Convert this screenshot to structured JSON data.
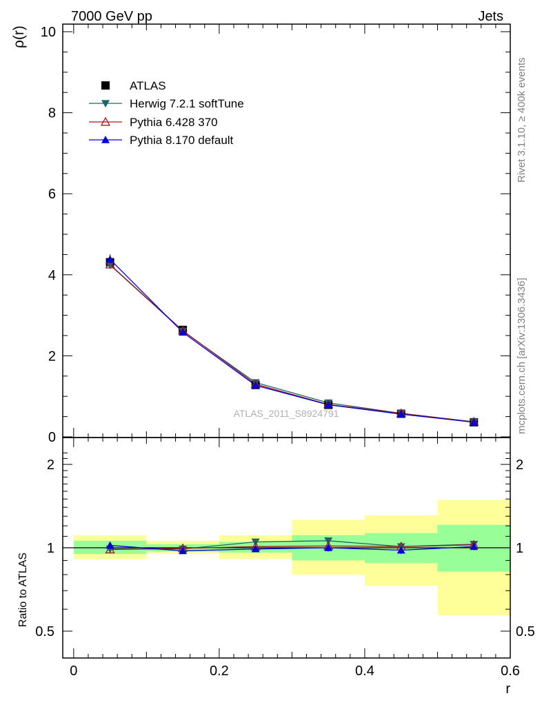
{
  "header": {
    "left": "7000 GeV pp",
    "right": "Jets"
  },
  "side_labels": {
    "rivet": "Rivet 3.1.10, ≥ 400k events",
    "mcplots": "mcplots.cern.ch [arXiv:1306.3436]"
  },
  "watermark": "ATLAS_2011_S8924791",
  "colors": {
    "atlas": "#000000",
    "herwig": "#1c6666",
    "pythia6": "#a3161a",
    "pythia8": "#0000dd",
    "band_inner": "#98ff98",
    "band_outer": "#ffff99"
  },
  "chart_data": [
    {
      "type": "line",
      "ylabel": "ρ(r)",
      "xlim": [
        -0.015,
        0.6
      ],
      "ylim": [
        0,
        10.2
      ],
      "yticks": [
        0,
        2,
        4,
        6,
        8,
        10
      ],
      "ytick_labels": [
        "0",
        "2",
        "4",
        "6",
        "8",
        "10"
      ],
      "x": [
        0.05,
        0.15,
        0.25,
        0.35,
        0.45,
        0.55
      ],
      "legend": [
        {
          "name": "ATLAS",
          "marker": "square"
        },
        {
          "name": "Herwig 7.2.1 softTune",
          "marker": "triangle-down"
        },
        {
          "name": "Pythia 6.428 370",
          "marker": "triangle-up-open"
        },
        {
          "name": "Pythia 8.170 default",
          "marker": "triangle-up"
        }
      ],
      "series": [
        {
          "name": "ATLAS",
          "values": [
            4.31,
            2.64,
            1.28,
            0.79,
            0.57,
            0.36
          ]
        },
        {
          "name": "Herwig 7.2.1 softTune",
          "values": [
            4.24,
            2.61,
            1.34,
            0.84,
            0.58,
            0.37
          ]
        },
        {
          "name": "Pythia 6.428 370",
          "values": [
            4.25,
            2.62,
            1.3,
            0.8,
            0.58,
            0.37
          ]
        },
        {
          "name": "Pythia 8.170 default",
          "values": [
            4.38,
            2.58,
            1.27,
            0.79,
            0.56,
            0.36
          ]
        }
      ],
      "error_p8": [
        0.12,
        0.05,
        0.03,
        0.02,
        0.02,
        0.01
      ]
    },
    {
      "type": "line",
      "xlabel": "r",
      "ylabel": "Ratio to ATLAS",
      "xlim": [
        -0.015,
        0.6
      ],
      "ylim": [
        0.41,
        2.3
      ],
      "yticks": [
        0.5,
        1,
        2
      ],
      "ytick_labels": [
        "0.5",
        "1",
        "2"
      ],
      "xticks": [
        0,
        0.2,
        0.4,
        0.6
      ],
      "xtick_labels": [
        "0",
        "0.2",
        "0.4",
        "0.6"
      ],
      "x": [
        0.05,
        0.15,
        0.25,
        0.35,
        0.45,
        0.55
      ],
      "bins": [
        [
          0,
          0.1
        ],
        [
          0.1,
          0.2
        ],
        [
          0.2,
          0.3
        ],
        [
          0.3,
          0.4
        ],
        [
          0.4,
          0.5
        ],
        [
          0.5,
          0.6
        ]
      ],
      "band_inner": [
        [
          0.95,
          1.06
        ],
        [
          0.97,
          1.03
        ],
        [
          0.96,
          1.05
        ],
        [
          0.9,
          1.11
        ],
        [
          0.88,
          1.13
        ],
        [
          0.82,
          1.21
        ]
      ],
      "band_outer": [
        [
          0.91,
          1.11
        ],
        [
          0.95,
          1.06
        ],
        [
          0.91,
          1.11
        ],
        [
          0.8,
          1.26
        ],
        [
          0.73,
          1.31
        ],
        [
          0.57,
          1.49
        ]
      ],
      "series": [
        {
          "name": "Herwig 7.2.1 softTune",
          "values": [
            0.99,
            0.99,
            1.05,
            1.06,
            1.01,
            1.03
          ]
        },
        {
          "name": "Pythia 6.428 370",
          "values": [
            0.985,
            0.995,
            1.01,
            1.015,
            1.01,
            1.025
          ]
        },
        {
          "name": "Pythia 8.170 default",
          "values": [
            1.02,
            0.975,
            0.99,
            1.0,
            0.98,
            1.01
          ]
        }
      ],
      "error_p8": [
        0.01,
        0.01,
        0.02,
        0.03,
        0.03,
        0.03
      ]
    }
  ]
}
